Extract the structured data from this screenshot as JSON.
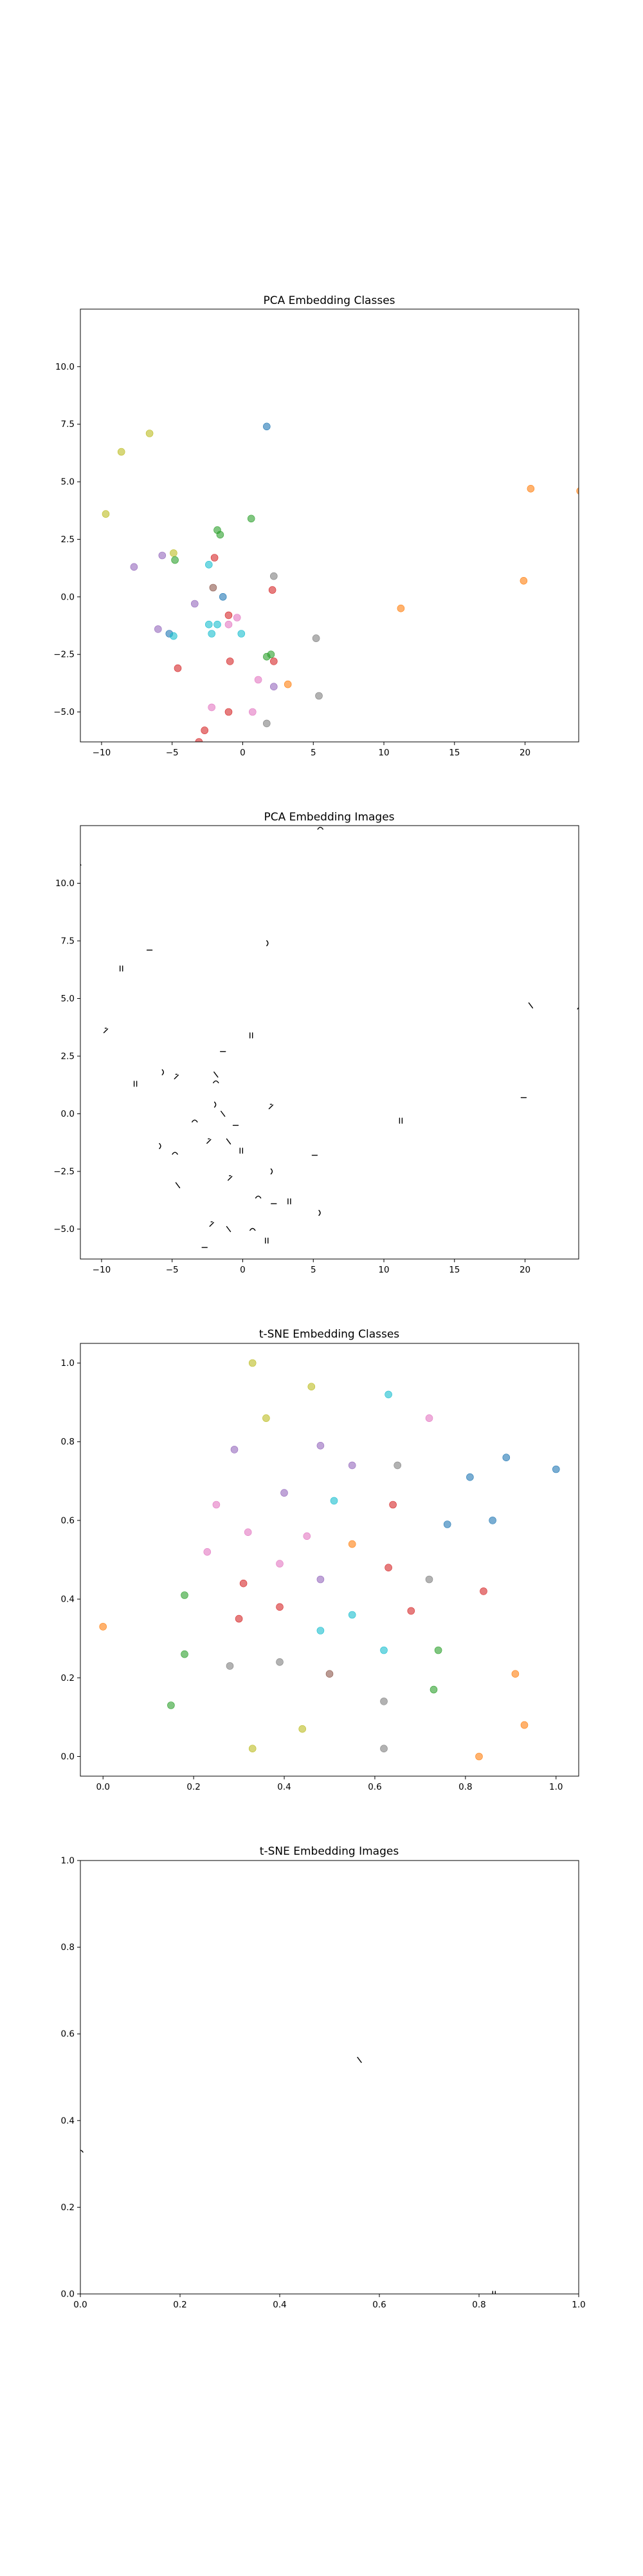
{
  "colors": [
    "#ff7f0e",
    "#e377c2",
    "#2ca02c",
    "#d62728",
    "#9467bd",
    "#17becf",
    "#bcbd22",
    "#1f77b4",
    "#8c564b",
    "#7f7f7f"
  ],
  "chart_data": [
    {
      "type": "scatter",
      "title": "PCA Embedding Classes",
      "xlim": [
        -11.5,
        23.8
      ],
      "ylim": [
        -6.3,
        12.5
      ],
      "xticks": [
        -10,
        -5,
        0,
        5,
        10,
        15,
        20
      ],
      "yticks": [
        -5.0,
        -2.5,
        0.0,
        2.5,
        5.0,
        7.5,
        10.0
      ],
      "x_tick_labels": [
        "−10",
        "−5",
        "0",
        "5",
        "10",
        "15",
        "20"
      ],
      "y_tick_labels": [
        "−5.0",
        "−2.5",
        "0.0",
        "2.5",
        "5.0",
        "7.5",
        "10.0"
      ],
      "grid": false,
      "points": [
        {
          "x": -11.8,
          "y": 10.9,
          "c": 0
        },
        {
          "x": -8.6,
          "y": 6.3,
          "c": 6
        },
        {
          "x": -6.6,
          "y": 7.1,
          "c": 6
        },
        {
          "x": 1.7,
          "y": 7.4,
          "c": 7
        },
        {
          "x": -9.7,
          "y": 3.6,
          "c": 6
        },
        {
          "x": 20.4,
          "y": 4.7,
          "c": 0
        },
        {
          "x": 23.9,
          "y": 4.6,
          "c": 0
        },
        {
          "x": 0.6,
          "y": 3.4,
          "c": 2
        },
        {
          "x": -1.8,
          "y": 2.9,
          "c": 2
        },
        {
          "x": -1.6,
          "y": 2.7,
          "c": 2
        },
        {
          "x": -5.7,
          "y": 1.8,
          "c": 4
        },
        {
          "x": -4.9,
          "y": 1.9,
          "c": 6
        },
        {
          "x": -4.8,
          "y": 1.6,
          "c": 2
        },
        {
          "x": -2.0,
          "y": 1.7,
          "c": 3
        },
        {
          "x": -2.4,
          "y": 1.4,
          "c": 5
        },
        {
          "x": -7.7,
          "y": 1.3,
          "c": 4
        },
        {
          "x": 2.2,
          "y": 0.9,
          "c": 9
        },
        {
          "x": 19.9,
          "y": 0.7,
          "c": 0
        },
        {
          "x": -2.1,
          "y": 0.4,
          "c": 8
        },
        {
          "x": 2.1,
          "y": 0.3,
          "c": 3
        },
        {
          "x": -1.4,
          "y": 0.0,
          "c": 7
        },
        {
          "x": -3.4,
          "y": -0.3,
          "c": 4
        },
        {
          "x": 11.2,
          "y": -0.5,
          "c": 0
        },
        {
          "x": -1.0,
          "y": -0.8,
          "c": 3
        },
        {
          "x": -0.4,
          "y": -0.9,
          "c": 1
        },
        {
          "x": -6.0,
          "y": -1.4,
          "c": 4
        },
        {
          "x": -2.4,
          "y": -1.2,
          "c": 5
        },
        {
          "x": -1.8,
          "y": -1.2,
          "c": 5
        },
        {
          "x": -1.0,
          "y": -1.2,
          "c": 1
        },
        {
          "x": -5.2,
          "y": -1.6,
          "c": 7
        },
        {
          "x": -4.9,
          "y": -1.7,
          "c": 5
        },
        {
          "x": -2.2,
          "y": -1.6,
          "c": 5
        },
        {
          "x": -0.1,
          "y": -1.6,
          "c": 5
        },
        {
          "x": 5.2,
          "y": -1.8,
          "c": 9
        },
        {
          "x": 2.0,
          "y": -2.5,
          "c": 2
        },
        {
          "x": 1.7,
          "y": -2.6,
          "c": 2
        },
        {
          "x": 2.2,
          "y": -2.8,
          "c": 3
        },
        {
          "x": -0.9,
          "y": -2.8,
          "c": 3
        },
        {
          "x": -4.6,
          "y": -3.1,
          "c": 3
        },
        {
          "x": 1.1,
          "y": -3.6,
          "c": 1
        },
        {
          "x": 3.2,
          "y": -3.8,
          "c": 0
        },
        {
          "x": 2.2,
          "y": -3.9,
          "c": 4
        },
        {
          "x": 5.4,
          "y": -4.3,
          "c": 9
        },
        {
          "x": -2.2,
          "y": -4.8,
          "c": 1
        },
        {
          "x": -1.0,
          "y": -5.0,
          "c": 3
        },
        {
          "x": 0.7,
          "y": -5.0,
          "c": 1
        },
        {
          "x": 1.7,
          "y": -5.5,
          "c": 9
        },
        {
          "x": -2.7,
          "y": -5.8,
          "c": 3
        },
        {
          "x": -3.1,
          "y": -6.3,
          "c": 3
        }
      ]
    },
    {
      "type": "scatter",
      "title": "PCA Embedding Images",
      "xlim": [
        -11.5,
        23.8
      ],
      "ylim": [
        -6.3,
        12.5
      ],
      "xticks": [
        -10,
        -5,
        0,
        5,
        10,
        15,
        20
      ],
      "yticks": [
        -5.0,
        -2.5,
        0.0,
        2.5,
        5.0,
        7.5,
        10.0
      ],
      "x_tick_labels": [
        "−10",
        "−5",
        "0",
        "5",
        "10",
        "15",
        "20"
      ],
      "y_tick_labels": [
        "−5.0",
        "−2.5",
        "0.0",
        "2.5",
        "5.0",
        "7.5",
        "10.0"
      ],
      "grid": false,
      "points": [
        {
          "x": -11.6,
          "y": 10.9
        },
        {
          "x": 5.5,
          "y": 12.4
        },
        {
          "x": -8.6,
          "y": 6.3
        },
        {
          "x": -6.6,
          "y": 7.1
        },
        {
          "x": 1.7,
          "y": 7.4
        },
        {
          "x": -9.7,
          "y": 3.6
        },
        {
          "x": 20.4,
          "y": 4.7
        },
        {
          "x": 23.9,
          "y": 4.6
        },
        {
          "x": 0.6,
          "y": 3.4
        },
        {
          "x": -1.4,
          "y": 2.7
        },
        {
          "x": -5.7,
          "y": 1.8
        },
        {
          "x": -4.7,
          "y": 1.6
        },
        {
          "x": -1.9,
          "y": 1.7
        },
        {
          "x": -1.9,
          "y": 1.4
        },
        {
          "x": -7.6,
          "y": 1.3
        },
        {
          "x": 19.9,
          "y": 0.7
        },
        {
          "x": -2.0,
          "y": 0.4
        },
        {
          "x": 2.0,
          "y": 0.3
        },
        {
          "x": -1.4,
          "y": 0.0
        },
        {
          "x": -3.4,
          "y": -0.3
        },
        {
          "x": 11.2,
          "y": -0.3
        },
        {
          "x": -0.5,
          "y": -0.5
        },
        {
          "x": -5.9,
          "y": -1.4
        },
        {
          "x": -2.4,
          "y": -1.2
        },
        {
          "x": -1.0,
          "y": -1.2
        },
        {
          "x": -4.8,
          "y": -1.7
        },
        {
          "x": -0.1,
          "y": -1.6
        },
        {
          "x": 5.1,
          "y": -1.8
        },
        {
          "x": 2.0,
          "y": -2.5
        },
        {
          "x": -0.9,
          "y": -2.8
        },
        {
          "x": -4.6,
          "y": -3.1
        },
        {
          "x": 1.1,
          "y": -3.6
        },
        {
          "x": 3.3,
          "y": -3.8
        },
        {
          "x": 2.2,
          "y": -3.9
        },
        {
          "x": 5.4,
          "y": -4.3
        },
        {
          "x": -2.2,
          "y": -4.8
        },
        {
          "x": -1.0,
          "y": -5.0
        },
        {
          "x": 0.7,
          "y": -5.0
        },
        {
          "x": 1.7,
          "y": -5.5
        },
        {
          "x": -2.7,
          "y": -5.8
        }
      ]
    },
    {
      "type": "scatter",
      "title": "t-SNE Embedding Classes",
      "xlim": [
        -0.05,
        1.05
      ],
      "ylim": [
        -0.05,
        1.05
      ],
      "xticks": [
        0.0,
        0.2,
        0.4,
        0.6,
        0.8,
        1.0
      ],
      "yticks": [
        0.0,
        0.2,
        0.4,
        0.6,
        0.8,
        1.0
      ],
      "x_tick_labels": [
        "0.0",
        "0.2",
        "0.4",
        "0.6",
        "0.8",
        "1.0"
      ],
      "y_tick_labels": [
        "0.0",
        "0.2",
        "0.4",
        "0.6",
        "0.8",
        "1.0"
      ],
      "grid": false,
      "points": [
        {
          "x": 0.33,
          "y": 1.0,
          "c": 6
        },
        {
          "x": 0.46,
          "y": 0.94,
          "c": 6
        },
        {
          "x": 0.63,
          "y": 0.92,
          "c": 5
        },
        {
          "x": 0.36,
          "y": 0.86,
          "c": 6
        },
        {
          "x": 0.72,
          "y": 0.86,
          "c": 1
        },
        {
          "x": 0.29,
          "y": 0.78,
          "c": 4
        },
        {
          "x": 0.48,
          "y": 0.79,
          "c": 4
        },
        {
          "x": 0.89,
          "y": 0.76,
          "c": 7
        },
        {
          "x": 0.55,
          "y": 0.74,
          "c": 4
        },
        {
          "x": 0.65,
          "y": 0.74,
          "c": 9
        },
        {
          "x": 1.0,
          "y": 0.73,
          "c": 7
        },
        {
          "x": 0.81,
          "y": 0.71,
          "c": 7
        },
        {
          "x": 0.4,
          "y": 0.67,
          "c": 4
        },
        {
          "x": 0.51,
          "y": 0.65,
          "c": 5
        },
        {
          "x": 0.25,
          "y": 0.64,
          "c": 1
        },
        {
          "x": 0.64,
          "y": 0.64,
          "c": 3
        },
        {
          "x": 0.76,
          "y": 0.59,
          "c": 7
        },
        {
          "x": 0.86,
          "y": 0.6,
          "c": 7
        },
        {
          "x": 0.32,
          "y": 0.57,
          "c": 1
        },
        {
          "x": 0.45,
          "y": 0.56,
          "c": 1
        },
        {
          "x": 0.55,
          "y": 0.54,
          "c": 0
        },
        {
          "x": 0.23,
          "y": 0.52,
          "c": 1
        },
        {
          "x": 0.39,
          "y": 0.49,
          "c": 1
        },
        {
          "x": 0.63,
          "y": 0.48,
          "c": 3
        },
        {
          "x": 0.31,
          "y": 0.44,
          "c": 3
        },
        {
          "x": 0.48,
          "y": 0.45,
          "c": 4
        },
        {
          "x": 0.72,
          "y": 0.45,
          "c": 9
        },
        {
          "x": 0.18,
          "y": 0.41,
          "c": 2
        },
        {
          "x": 0.84,
          "y": 0.42,
          "c": 3
        },
        {
          "x": 0.39,
          "y": 0.38,
          "c": 3
        },
        {
          "x": 0.55,
          "y": 0.36,
          "c": 5
        },
        {
          "x": 0.68,
          "y": 0.37,
          "c": 3
        },
        {
          "x": 0.3,
          "y": 0.35,
          "c": 3
        },
        {
          "x": 0.0,
          "y": 0.33,
          "c": 0
        },
        {
          "x": 0.48,
          "y": 0.32,
          "c": 5
        },
        {
          "x": 0.62,
          "y": 0.27,
          "c": 5
        },
        {
          "x": 0.74,
          "y": 0.27,
          "c": 2
        },
        {
          "x": 0.18,
          "y": 0.26,
          "c": 2
        },
        {
          "x": 0.39,
          "y": 0.24,
          "c": 9
        },
        {
          "x": 0.28,
          "y": 0.23,
          "c": 9
        },
        {
          "x": 0.5,
          "y": 0.21,
          "c": 8
        },
        {
          "x": 0.91,
          "y": 0.21,
          "c": 0
        },
        {
          "x": 0.73,
          "y": 0.17,
          "c": 2
        },
        {
          "x": 0.62,
          "y": 0.14,
          "c": 9
        },
        {
          "x": 0.15,
          "y": 0.13,
          "c": 2
        },
        {
          "x": 0.93,
          "y": 0.08,
          "c": 0
        },
        {
          "x": 0.44,
          "y": 0.07,
          "c": 6
        },
        {
          "x": 0.33,
          "y": 0.02,
          "c": 6
        },
        {
          "x": 0.62,
          "y": 0.02,
          "c": 9
        },
        {
          "x": 0.83,
          "y": 0.0,
          "c": 0
        }
      ]
    },
    {
      "type": "scatter",
      "title": "t-SNE Embedding Images",
      "xlim": [
        0.0,
        1.0
      ],
      "ylim": [
        0.0,
        1.0
      ],
      "xticks": [
        0.0,
        0.2,
        0.4,
        0.6,
        0.8,
        1.0
      ],
      "yticks": [
        0.0,
        0.2,
        0.4,
        0.6,
        0.8,
        1.0
      ],
      "x_tick_labels": [
        "0.0",
        "0.2",
        "0.4",
        "0.6",
        "0.8",
        "1.0"
      ],
      "y_tick_labels": [
        "0.0",
        "0.2",
        "0.4",
        "0.6",
        "0.8",
        "1.0"
      ],
      "grid": false,
      "points": [
        {
          "x": 0.56,
          "y": 0.54
        },
        {
          "x": 0.0,
          "y": 0.33
        },
        {
          "x": 0.83,
          "y": 0.0
        }
      ]
    }
  ]
}
